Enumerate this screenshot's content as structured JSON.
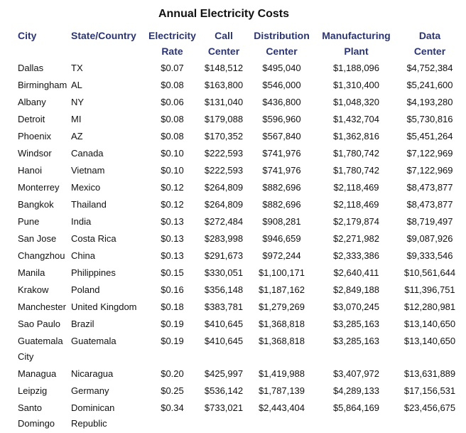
{
  "title": "Annual Electricity Costs",
  "headers": [
    "City",
    "State/Country",
    "Electricity Rate",
    "Call Center",
    "Distribution Center",
    "Manufacturing Plant",
    "Data Center"
  ],
  "rows": [
    [
      "Dallas",
      "TX",
      "$0.07",
      "$148,512",
      "$495,040",
      "$1,188,096",
      "$4,752,384"
    ],
    [
      "Birmingham",
      "AL",
      "$0.08",
      "$163,800",
      "$546,000",
      "$1,310,400",
      "$5,241,600"
    ],
    [
      "Albany",
      "NY",
      "$0.06",
      "$131,040",
      "$436,800",
      "$1,048,320",
      "$4,193,280"
    ],
    [
      "Detroit",
      "MI",
      "$0.08",
      "$179,088",
      "$596,960",
      "$1,432,704",
      "$5,730,816"
    ],
    [
      "Phoenix",
      "AZ",
      "$0.08",
      "$170,352",
      "$567,840",
      "$1,362,816",
      "$5,451,264"
    ],
    [
      "Windsor",
      "Canada",
      "$0.10",
      "$222,593",
      "$741,976",
      "$1,780,742",
      "$7,122,969"
    ],
    [
      "Hanoi",
      "Vietnam",
      "$0.10",
      "$222,593",
      "$741,976",
      "$1,780,742",
      "$7,122,969"
    ],
    [
      "Monterrey",
      "Mexico",
      "$0.12",
      "$264,809",
      "$882,696",
      "$2,118,469",
      "$8,473,877"
    ],
    [
      "Bangkok",
      "Thailand",
      "$0.12",
      "$264,809",
      "$882,696",
      "$2,118,469",
      "$8,473,877"
    ],
    [
      "Pune",
      "India",
      "$0.13",
      "$272,484",
      "$908,281",
      "$2,179,874",
      "$8,719,497"
    ],
    [
      "San Jose",
      "Costa Rica",
      "$0.13",
      "$283,998",
      "$946,659",
      "$2,271,982",
      "$9,087,926"
    ],
    [
      "Changzhou",
      "China",
      "$0.13",
      "$291,673",
      "$972,244",
      "$2,333,386",
      "$9,333,546"
    ],
    [
      "Manila",
      "Philippines",
      "$0.15",
      "$330,051",
      "$1,100,171",
      "$2,640,411",
      "$10,561,644"
    ],
    [
      "Krakow",
      "Poland",
      "$0.16",
      "$356,148",
      "$1,187,162",
      "$2,849,188",
      "$11,396,751"
    ],
    [
      "Manchester",
      "United Kingdom",
      "$0.18",
      "$383,781",
      "$1,279,269",
      "$3,070,245",
      "$12,280,981"
    ],
    [
      "Sao Paulo",
      "Brazil",
      "$0.19",
      "$410,645",
      "$1,368,818",
      "$3,285,163",
      "$13,140,650"
    ],
    [
      "Guatemala City",
      "Guatemala",
      "$0.19",
      "$410,645",
      "$1,368,818",
      "$3,285,163",
      "$13,140,650"
    ],
    [
      "Managua",
      "Nicaragua",
      "$0.20",
      "$425,997",
      "$1,419,988",
      "$3,407,972",
      "$13,631,889"
    ],
    [
      "Leipzig",
      "Germany",
      "$0.25",
      "$536,142",
      "$1,787,139",
      "$4,289,133",
      "$17,156,531"
    ],
    [
      "Santo Domingo",
      "Dominican Republic",
      "$0.34",
      "$733,021",
      "$2,443,404",
      "$5,864,169",
      "$23,456,675"
    ]
  ]
}
